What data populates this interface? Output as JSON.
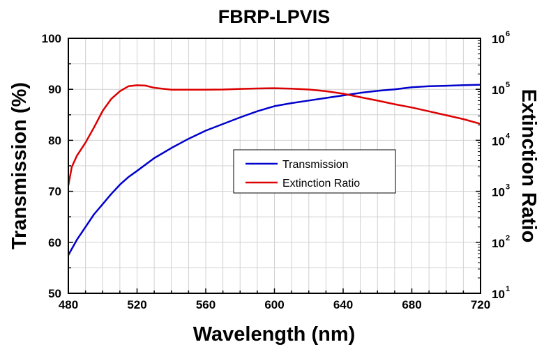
{
  "chart_data": {
    "type": "line",
    "title": "FBRP-LPVIS",
    "xlabel": "Wavelength (nm)",
    "ylabel": "Transmission (%)",
    "y2label": "Extinction Ratio",
    "xlim": [
      480,
      720
    ],
    "ylim": [
      50,
      100
    ],
    "y2lim": [
      10,
      1000000
    ],
    "y2scale": "log",
    "grid": true,
    "legend_position": "center-right",
    "xticks": [
      "480",
      "520",
      "560",
      "600",
      "640",
      "680",
      "720"
    ],
    "yticks": [
      "50",
      "60",
      "70",
      "80",
      "90",
      "100"
    ],
    "y2ticks": [
      {
        "base": "10",
        "exp": "1"
      },
      {
        "base": "10",
        "exp": "2"
      },
      {
        "base": "10",
        "exp": "3"
      },
      {
        "base": "10",
        "exp": "4"
      },
      {
        "base": "10",
        "exp": "5"
      },
      {
        "base": "10",
        "exp": "6"
      }
    ],
    "series": [
      {
        "name": "Transmission",
        "axis": "left",
        "color": "#0000cc",
        "x": [
          480,
          485,
          490,
          495,
          500,
          505,
          510,
          515,
          520,
          530,
          540,
          550,
          560,
          570,
          580,
          590,
          600,
          610,
          620,
          630,
          640,
          650,
          660,
          670,
          680,
          690,
          700,
          710,
          720
        ],
        "y": [
          57.5,
          60.5,
          63.0,
          65.5,
          67.5,
          69.5,
          71.3,
          72.8,
          74.0,
          76.5,
          78.5,
          80.3,
          81.9,
          83.2,
          84.5,
          85.7,
          86.7,
          87.3,
          87.8,
          88.3,
          88.8,
          89.3,
          89.7,
          90.0,
          90.4,
          90.6,
          90.7,
          90.8,
          90.9
        ]
      },
      {
        "name": "Extinction Ratio",
        "axis": "right",
        "color": "#dd0000",
        "x": [
          480,
          482,
          485,
          490,
          495,
          500,
          505,
          510,
          515,
          520,
          525,
          530,
          540,
          550,
          560,
          570,
          580,
          590,
          600,
          610,
          620,
          630,
          640,
          650,
          660,
          670,
          680,
          690,
          700,
          710,
          720
        ],
        "y": [
          1300,
          3000,
          5000,
          9000,
          18000,
          38000,
          65000,
          92000,
          115000,
          120000,
          118000,
          107000,
          98000,
          98000,
          98000,
          99000,
          102000,
          104000,
          105000,
          103000,
          99000,
          92000,
          82000,
          70000,
          60000,
          51000,
          44000,
          37000,
          31000,
          26000,
          21000
        ]
      }
    ]
  }
}
